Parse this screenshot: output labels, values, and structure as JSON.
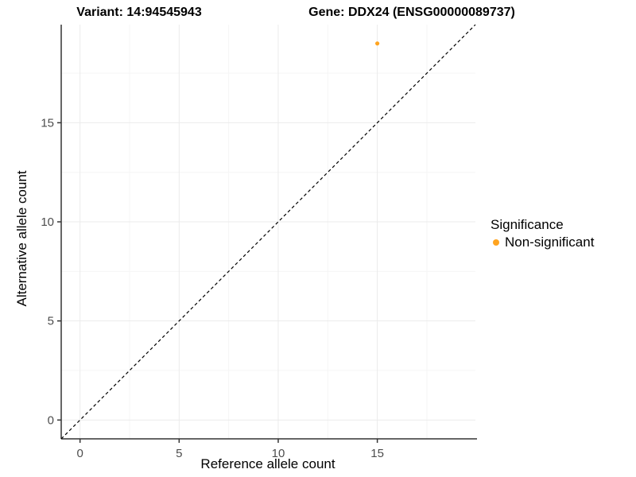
{
  "figure": {
    "title_variant": "Variant: 14:94545943",
    "title_gene": "Gene: DDX24 (ENSG00000089737)"
  },
  "chart_data": {
    "type": "scatter",
    "title": "Variant: 14:94545943 / Gene: DDX24 (ENSG00000089737)",
    "xlabel": "Reference allele count",
    "ylabel": "Alternative allele count",
    "xlim": [
      -0.95,
      19.95
    ],
    "ylim": [
      -0.95,
      19.95
    ],
    "x_major_ticks": [
      0,
      5,
      10,
      15
    ],
    "y_major_ticks": [
      0,
      5,
      10,
      15
    ],
    "x_minor_ticks": [
      2.5,
      7.5,
      12.5,
      17.5
    ],
    "y_minor_ticks": [
      2.5,
      7.5,
      12.5,
      17.5
    ],
    "grid": "on",
    "series": [
      {
        "name": "Non-significant",
        "color": "#FFA420",
        "points": [
          {
            "x": 15,
            "y": 19
          }
        ]
      }
    ],
    "reference_line": {
      "type": "identity",
      "style": "dashed",
      "color": "#000000"
    },
    "legend": {
      "title": "Significance",
      "position": "right",
      "items": [
        {
          "label": "Non-significant",
          "color": "#FFA420"
        }
      ]
    }
  },
  "colors": {
    "background": "#FFFFFF",
    "grid_major": "#EBEBEB",
    "grid_minor": "#F5F5F5",
    "axis_line": "#333333",
    "tick_label": "#4D4D4D",
    "text": "#000000",
    "point": "#FFA420"
  }
}
